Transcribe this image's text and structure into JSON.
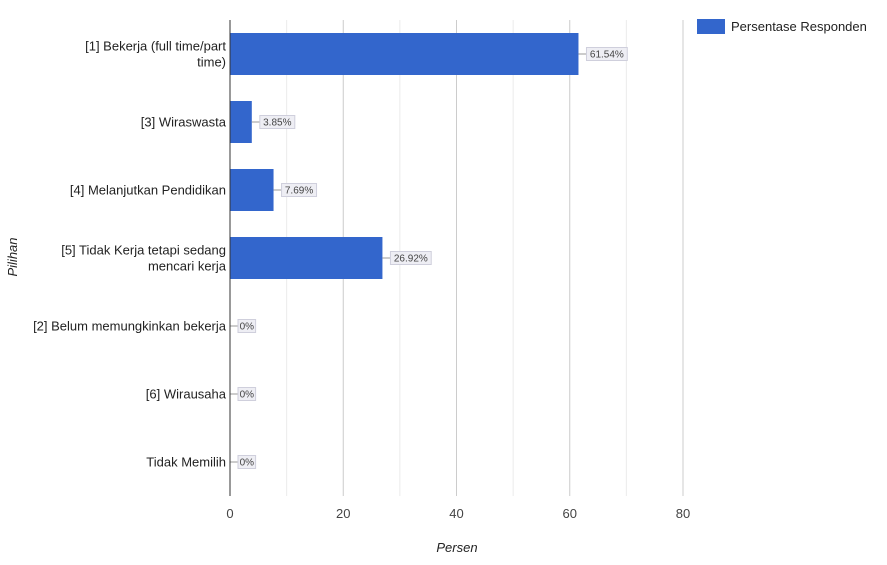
{
  "chart_data": {
    "type": "bar",
    "orientation": "horizontal",
    "categories": [
      "[1] Bekerja (full time/part time)",
      "[3] Wiraswasta",
      "[4] Melanjutkan Pendidikan",
      "[5] Tidak Kerja tetapi sedang mencari kerja",
      "[2] Belum memungkinkan bekerja",
      "[6] Wirausaha",
      "Tidak Memilih"
    ],
    "series": [
      {
        "name": "Persentase Responden",
        "values": [
          61.54,
          3.85,
          7.69,
          26.92,
          0,
          0,
          0
        ],
        "labels": [
          "61.54%",
          "3.85%",
          "7.69%",
          "26.92%",
          "0%",
          "0%",
          "0%"
        ],
        "color": "#3366cc"
      }
    ],
    "xlabel": "Persen",
    "ylabel": "Pilihan",
    "xlim": [
      0,
      80
    ],
    "xticks": [
      0,
      20,
      40,
      60,
      80
    ],
    "grid": true,
    "legend_position": "top-right"
  }
}
